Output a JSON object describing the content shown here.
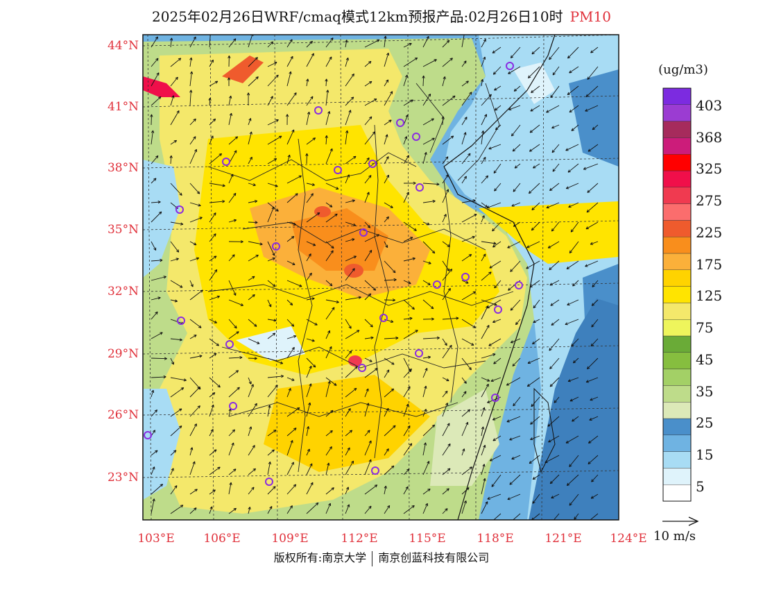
{
  "title": {
    "main": "2025年02月26日WRF/cmaq模式12km预报产品:02月26日10时",
    "species": "PM10"
  },
  "latitudes": [
    "44°N",
    "41°N",
    "38°N",
    "35°N",
    "32°N",
    "29°N",
    "26°N",
    "23°N"
  ],
  "longitudes": [
    "103°E",
    "106°E",
    "109°E",
    "112°E",
    "115°E",
    "118°E",
    "121°E",
    "124°E"
  ],
  "colorbar": {
    "units": "(ug/m3)",
    "labels": [
      "403",
      "368",
      "325",
      "275",
      "225",
      "175",
      "125",
      "75",
      "45",
      "35",
      "25",
      "15",
      "5"
    ],
    "colors": [
      "#ffffff",
      "#dff3fb",
      "#a8dcf4",
      "#6fb3e2",
      "#4a8fca",
      "#dce9b8",
      "#bedc8a",
      "#a3d066",
      "#86be3f",
      "#6aab37",
      "#eef55c",
      "#f4e86b",
      "#ffe400",
      "#ffd300",
      "#fbb03a",
      "#f98e1c",
      "#ef5b2d",
      "#fb6d6d",
      "#f03a50",
      "#f00f4a",
      "#ff0000",
      "#cc1c7a",
      "#a62b5c",
      "#9b3cd2",
      "#7c2be0"
    ]
  },
  "wind": {
    "reference": "10 m/s"
  },
  "copyright": {
    "left": "版权所有:南京大学",
    "right": "南京创蓝科技有限公司"
  }
}
